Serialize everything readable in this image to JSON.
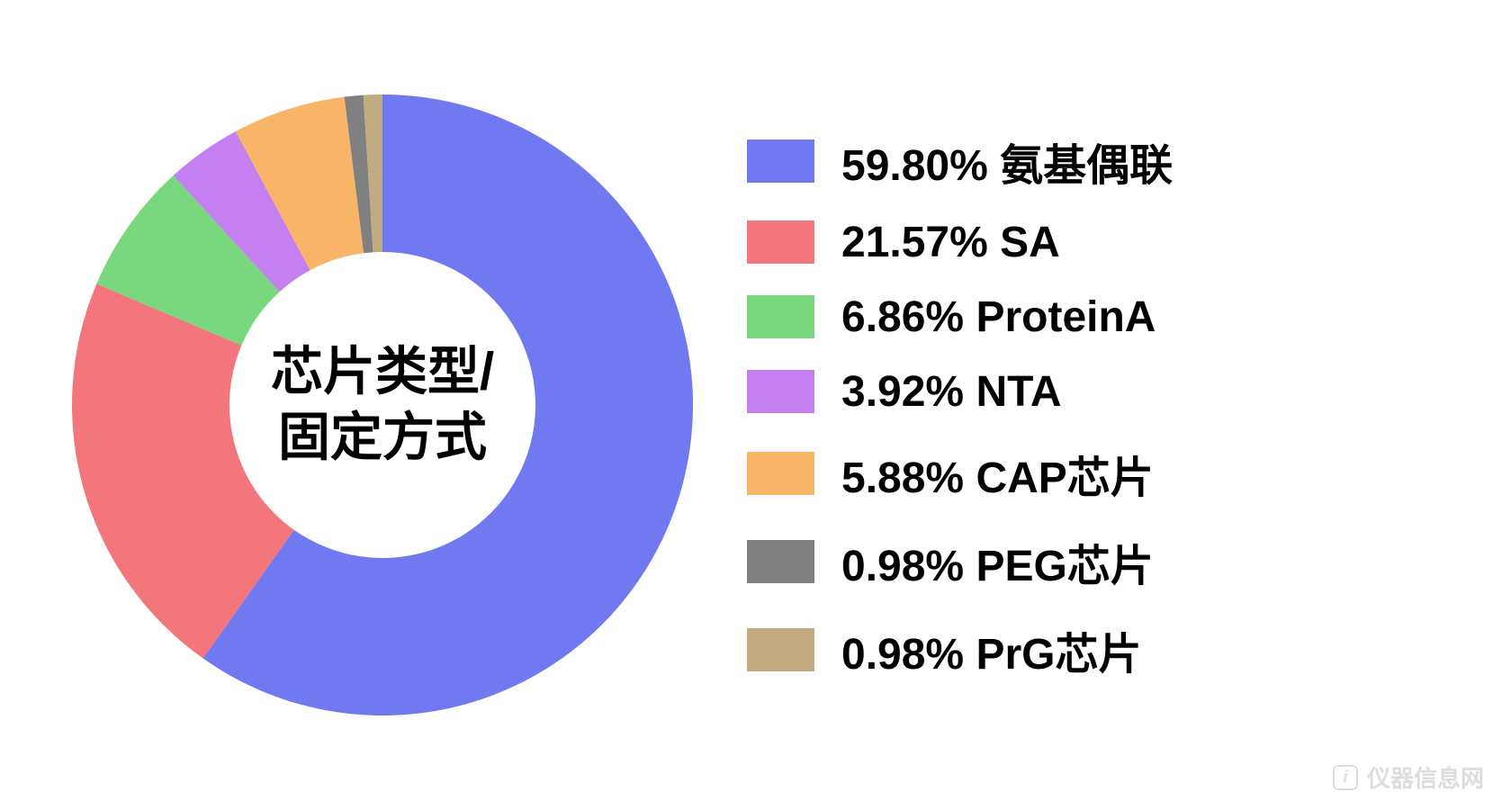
{
  "chart": {
    "type": "donut",
    "outer_radius": 345,
    "inner_radius": 170,
    "start_angle_deg": -90,
    "center_label_line1": "芯片类型/",
    "center_label_line2": "固定方式",
    "center_label_fontsize": 58,
    "center_label_color": "#000000",
    "background_color": "#ffffff",
    "slices": [
      {
        "label": "氨基偶联",
        "percent": 59.8,
        "color": "#7179f1"
      },
      {
        "label": "SA",
        "percent": 21.57,
        "color": "#f2767b"
      },
      {
        "label": "ProteinA",
        "percent": 6.86,
        "color": "#79d87e"
      },
      {
        "label": "NTA",
        "percent": 3.92,
        "color": "#c47ff0"
      },
      {
        "label": "CAP芯片",
        "percent": 5.88,
        "color": "#f8b567"
      },
      {
        "label": "PEG芯片",
        "percent": 0.98,
        "color": "#808080"
      },
      {
        "label": "PrG芯片",
        "percent": 0.98,
        "color": "#c2ab82"
      }
    ]
  },
  "legend": {
    "swatch_width": 75,
    "swatch_height": 48,
    "fontsize": 48,
    "font_weight": 900,
    "text_color": "#000000",
    "row_gap": 28,
    "items": [
      {
        "text": "59.80%  氨基偶联",
        "color": "#7179f1"
      },
      {
        "text": "21.57%  SA",
        "color": "#f2767b"
      },
      {
        "text": "6.86%  ProteinA",
        "color": "#79d87e"
      },
      {
        "text": "3.92%  NTA",
        "color": "#c47ff0"
      },
      {
        "text": "5.88%  CAP芯片",
        "color": "#f8b567"
      },
      {
        "text": "0.98%  PEG芯片",
        "color": "#808080"
      },
      {
        "text": "0.98%  PrG芯片",
        "color": "#c2ab82"
      }
    ]
  },
  "watermark": {
    "text": "仪器信息网",
    "color": "#cfcfcf"
  }
}
